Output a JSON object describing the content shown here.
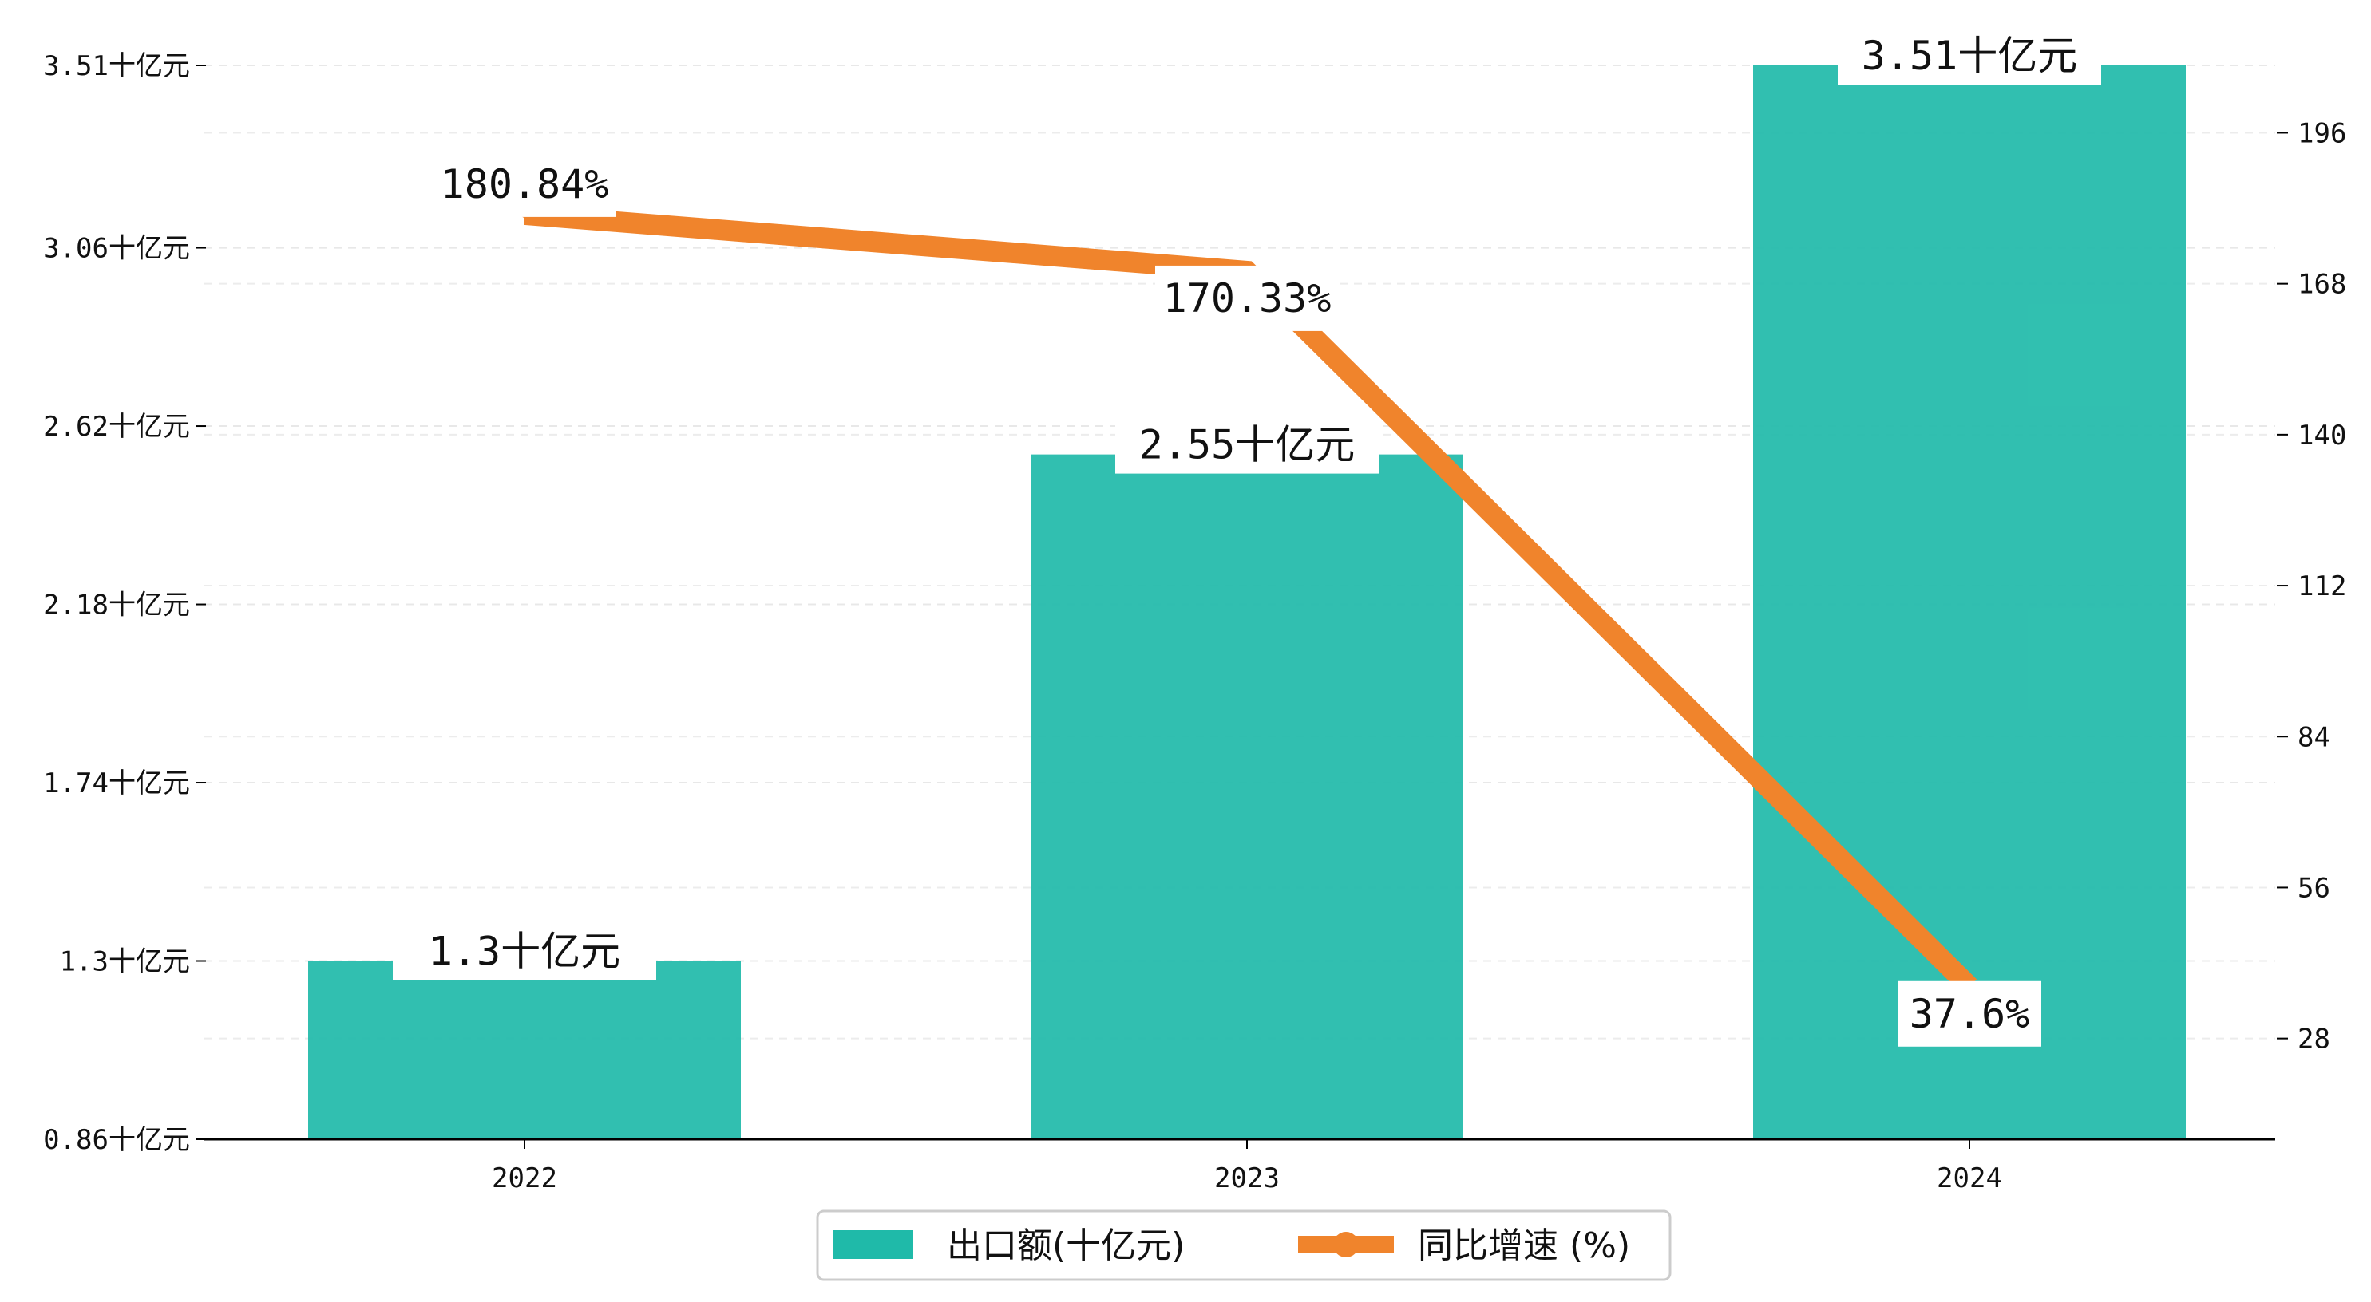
{
  "chart_data": {
    "type": "bar",
    "categories": [
      "2022",
      "2023",
      "2024"
    ],
    "series": [
      {
        "name": "出口额(十亿元)",
        "kind": "bar",
        "axis": "left",
        "color": "#1fbaa9",
        "values": [
          1.3,
          2.55,
          3.51
        ],
        "labels": [
          "1.3十亿元",
          "2.55十亿元",
          "3.51十亿元"
        ]
      },
      {
        "name": "同比增速 (%)",
        "kind": "line",
        "axis": "right",
        "color": "#f0842c",
        "values": [
          180.84,
          170.33,
          37.6
        ],
        "labels": [
          "180.84%",
          "170.33%",
          "37.6%"
        ]
      }
    ],
    "y_left": {
      "ticks": [
        0.86,
        1.3,
        1.74,
        2.18,
        2.62,
        3.06,
        3.51
      ],
      "tick_labels": [
        "0.86十亿元",
        "1.3十亿元",
        "1.74十亿元",
        "2.18十亿元",
        "2.62十亿元",
        "3.06十亿元",
        "3.51十亿元"
      ],
      "range": [
        0.86,
        3.51
      ]
    },
    "y_right": {
      "ticks": [
        28,
        56,
        84,
        112,
        140,
        168,
        196
      ],
      "tick_labels": [
        "28",
        "56",
        "84",
        "112",
        "140",
        "168",
        "196"
      ],
      "range": [
        9.3,
        208.5
      ]
    },
    "grid": true,
    "legend_position": "bottom-center"
  }
}
